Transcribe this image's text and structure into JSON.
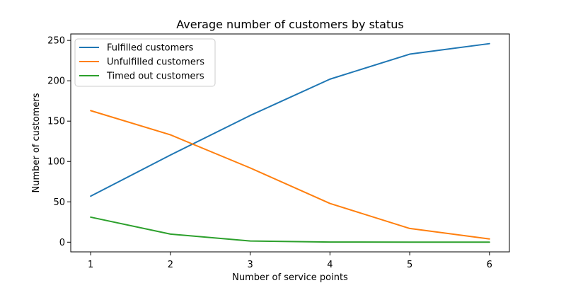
{
  "chart_data": {
    "type": "line",
    "title": "Average number of customers by status",
    "xlabel": "Number of service points",
    "ylabel": "Number of customers",
    "x": [
      1,
      2,
      3,
      4,
      5,
      6
    ],
    "xlim": [
      0.75,
      6.25
    ],
    "ylim": [
      -12,
      258
    ],
    "xticks": [
      1,
      2,
      3,
      4,
      5,
      6
    ],
    "yticks": [
      0,
      50,
      100,
      150,
      200,
      250
    ],
    "grid": false,
    "legend_position": "top-left",
    "series": [
      {
        "name": "Fulfilled customers",
        "color": "#1f77b4",
        "values": [
          57,
          108,
          157,
          202,
          233,
          246
        ]
      },
      {
        "name": "Unfulfilled customers",
        "color": "#ff7f0e",
        "values": [
          163,
          133,
          92,
          48,
          17,
          4
        ]
      },
      {
        "name": "Timed out customers",
        "color": "#2ca02c",
        "values": [
          31,
          10,
          1.5,
          0.2,
          0.1,
          0
        ]
      }
    ]
  }
}
